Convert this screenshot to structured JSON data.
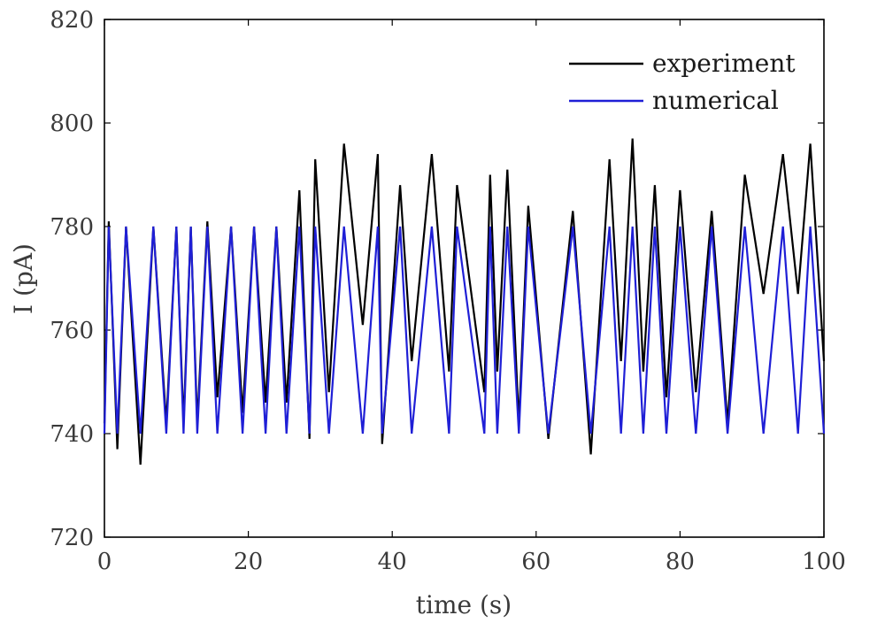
{
  "chart_data": {
    "type": "line",
    "title": "",
    "xlabel": "time (s)",
    "ylabel": "I (pA)",
    "xlim": [
      0,
      100
    ],
    "ylim": [
      720,
      820
    ],
    "xticks": [
      0,
      20,
      40,
      60,
      80,
      100
    ],
    "yticks": [
      720,
      740,
      760,
      780,
      800,
      820
    ],
    "grid": false,
    "legend_position": "top-right",
    "series": [
      {
        "name": "experiment",
        "color": "#000000",
        "x": [
          0,
          0.6,
          1.8,
          3.0,
          5.0,
          6.8,
          8.6,
          10.0,
          11.0,
          12.0,
          12.9,
          14.3,
          15.7,
          17.6,
          19.2,
          20.8,
          22.4,
          23.9,
          25.3,
          27.1,
          28.5,
          29.3,
          31.2,
          33.3,
          35.9,
          38.0,
          38.6,
          41.1,
          42.7,
          45.5,
          47.9,
          49.0,
          52.8,
          53.6,
          54.6,
          56.0,
          57.6,
          58.9,
          61.7,
          65.1,
          67.6,
          70.2,
          71.8,
          73.4,
          74.9,
          76.5,
          78.1,
          80.0,
          82.2,
          84.4,
          86.6,
          89.0,
          91.6,
          94.3,
          96.4,
          98.1,
          100.0
        ],
        "y": [
          742,
          781,
          737,
          780,
          734,
          780,
          742,
          780,
          742,
          780,
          742,
          781,
          747,
          780,
          744,
          780,
          746,
          780,
          746,
          787,
          739,
          793,
          748,
          796,
          761,
          794,
          738,
          788,
          754,
          794,
          752,
          788,
          748,
          790,
          752,
          791,
          742,
          784,
          739,
          783,
          736,
          793,
          754,
          797,
          752,
          788,
          747,
          787,
          748,
          783,
          742,
          790,
          767,
          794,
          767,
          796,
          754
        ]
      },
      {
        "name": "numerical",
        "color": "#1f1fd6",
        "x": [
          0,
          0.6,
          1.8,
          3.0,
          5.0,
          6.8,
          8.6,
          10.0,
          11.0,
          12.0,
          12.9,
          14.3,
          15.7,
          17.6,
          19.2,
          20.8,
          22.4,
          23.9,
          25.3,
          27.1,
          28.5,
          29.3,
          31.2,
          33.3,
          35.9,
          38.0,
          38.6,
          41.1,
          42.7,
          45.5,
          47.9,
          49.0,
          52.8,
          53.6,
          54.6,
          56.0,
          57.6,
          58.9,
          61.7,
          65.1,
          67.6,
          70.2,
          71.8,
          73.4,
          74.9,
          76.5,
          78.1,
          80.0,
          82.2,
          84.4,
          86.6,
          89.0,
          91.6,
          94.3,
          96.4,
          98.1,
          100.0
        ],
        "y": [
          740,
          780,
          740,
          780,
          740,
          780,
          740,
          780,
          740,
          780,
          740,
          780,
          740,
          780,
          740,
          780,
          740,
          780,
          740,
          780,
          740,
          780,
          740,
          780,
          740,
          780,
          740,
          780,
          740,
          780,
          740,
          780,
          740,
          780,
          740,
          780,
          740,
          780,
          740,
          780,
          740,
          780,
          740,
          780,
          740,
          780,
          740,
          780,
          740,
          780,
          740,
          780,
          740,
          780,
          740,
          780,
          740
        ]
      }
    ]
  }
}
